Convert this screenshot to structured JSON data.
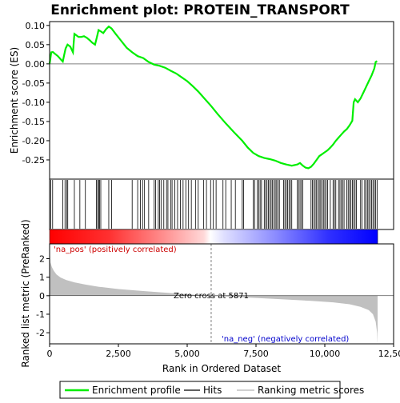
{
  "chart_data": {
    "type": "line",
    "title": "Enrichment plot: PROTEIN_TRANSPORT",
    "colors": {
      "profile": "#00ee00",
      "hits": "#000000",
      "metric_fill": "#c0c0c0",
      "zero_line": "#808080",
      "pos_label": "#cc0000",
      "neg_label": "#0000cc",
      "bar_pos": "#ff0000",
      "bar_neg": "#0000ff"
    },
    "es_panel": {
      "ylabel": "Enrichment score (ES)",
      "ylim": [
        -0.3,
        0.11
      ],
      "yticks": [
        0.1,
        0.05,
        0.0,
        -0.05,
        -0.1,
        -0.15,
        -0.2,
        -0.25
      ],
      "ytick_labels": [
        "0.10",
        "0.05",
        "0.00",
        "-0.05",
        "-0.10",
        "-0.15",
        "-0.20",
        "-0.25"
      ],
      "x": [
        0,
        60,
        120,
        200,
        300,
        400,
        480,
        520,
        580,
        650,
        750,
        850,
        900,
        960,
        1050,
        1150,
        1250,
        1350,
        1450,
        1550,
        1650,
        1720,
        1780,
        1850,
        1950,
        2050,
        2150,
        2250,
        2400,
        2600,
        2800,
        3000,
        3200,
        3400,
        3600,
        3800,
        4000,
        4200,
        4400,
        4600,
        4800,
        5000,
        5200,
        5400,
        5600,
        5871,
        6100,
        6400,
        6700,
        7000,
        7200,
        7400,
        7600,
        7800,
        8000,
        8200,
        8400,
        8600,
        8800,
        9000,
        9100,
        9200,
        9300,
        9400,
        9500,
        9600,
        9700,
        9800,
        9900,
        10000,
        10100,
        10200,
        10300,
        10400,
        10500,
        10600,
        10700,
        10800,
        10900,
        11000,
        11050,
        11100,
        11200,
        11300,
        11400,
        11500,
        11600,
        11700,
        11800,
        11850,
        11900
      ],
      "y": [
        0.0,
        0.03,
        0.031,
        0.026,
        0.02,
        0.012,
        0.006,
        0.02,
        0.04,
        0.05,
        0.045,
        0.03,
        0.078,
        0.075,
        0.07,
        0.07,
        0.072,
        0.068,
        0.062,
        0.055,
        0.05,
        0.07,
        0.088,
        0.085,
        0.08,
        0.09,
        0.097,
        0.092,
        0.078,
        0.06,
        0.042,
        0.03,
        0.02,
        0.015,
        0.005,
        -0.002,
        -0.005,
        -0.01,
        -0.018,
        -0.025,
        -0.035,
        -0.045,
        -0.058,
        -0.072,
        -0.088,
        -0.11,
        -0.13,
        -0.155,
        -0.178,
        -0.2,
        -0.218,
        -0.232,
        -0.24,
        -0.245,
        -0.248,
        -0.252,
        -0.258,
        -0.262,
        -0.265,
        -0.262,
        -0.258,
        -0.265,
        -0.27,
        -0.272,
        -0.268,
        -0.26,
        -0.25,
        -0.24,
        -0.235,
        -0.23,
        -0.225,
        -0.218,
        -0.21,
        -0.2,
        -0.192,
        -0.184,
        -0.176,
        -0.17,
        -0.16,
        -0.148,
        -0.1,
        -0.092,
        -0.1,
        -0.09,
        -0.075,
        -0.06,
        -0.045,
        -0.03,
        -0.012,
        0.005,
        0.007
      ]
    },
    "hits": [
      40,
      110,
      480,
      560,
      620,
      660,
      900,
      1100,
      1300,
      1700,
      1750,
      1780,
      1820,
      1860,
      2150,
      2250,
      3000,
      3200,
      3300,
      3380,
      3450,
      3600,
      3800,
      3850,
      3950,
      4000,
      4050,
      4150,
      4250,
      4300,
      4400,
      4450,
      4550,
      4650,
      4750,
      4850,
      4950,
      5050,
      5150,
      5300,
      5400,
      5600,
      5700,
      5850,
      5950,
      6050,
      6300,
      6400,
      6600,
      6750,
      7000,
      7050,
      7400,
      7450,
      7550,
      7600,
      7650,
      7700,
      7800,
      7850,
      7900,
      7950,
      8000,
      8050,
      8100,
      8150,
      8200,
      8250,
      8300,
      8350,
      8500,
      8550,
      8600,
      8650,
      8700,
      8750,
      8800,
      9000,
      9050,
      9100,
      9150,
      9200,
      9500,
      9550,
      9600,
      9650,
      9700,
      9750,
      9800,
      9850,
      9900,
      9950,
      10000,
      10050,
      10100,
      10200,
      10300,
      10350,
      10400,
      10500,
      10550,
      10600,
      10650,
      10700,
      10800,
      10850,
      10900,
      10950,
      11000,
      11050,
      11100,
      11150,
      11300,
      11350,
      11450,
      11500,
      11550,
      11600,
      11650,
      11700,
      11750,
      11800,
      11850,
      11900
    ],
    "metric_panel": {
      "ylabel": "Ranked list metric (PreRanked)",
      "ylim": [
        -2.6,
        2.8
      ],
      "yticks": [
        2,
        1,
        0,
        -1,
        -2
      ],
      "ytick_labels": [
        "2",
        "1",
        "0",
        "-1",
        "-2"
      ],
      "x": [
        0,
        30,
        80,
        150,
        250,
        400,
        600,
        900,
        1300,
        1800,
        2500,
        3500,
        4500,
        5500,
        5871,
        6500,
        7500,
        8500,
        9500,
        10300,
        10900,
        11300,
        11600,
        11750,
        11850,
        11900,
        11920
      ],
      "y": [
        2.6,
        1.8,
        1.55,
        1.35,
        1.15,
        0.98,
        0.85,
        0.72,
        0.6,
        0.48,
        0.36,
        0.24,
        0.13,
        0.03,
        0.0,
        -0.05,
        -0.12,
        -0.2,
        -0.28,
        -0.36,
        -0.46,
        -0.6,
        -0.78,
        -1.0,
        -1.4,
        -2.0,
        -2.6
      ],
      "zero_cross_label": "Zero cross at 5871",
      "zero_cross": 5871,
      "pos_label": "'na_pos' (positively correlated)",
      "neg_label": "'na_neg' (negatively correlated)"
    },
    "xaxis": {
      "xlabel": "Rank in Ordered Dataset",
      "xlim": [
        0,
        12500
      ],
      "xticks": [
        0,
        2500,
        5000,
        7500,
        10000,
        12500
      ],
      "xtick_labels": [
        "0",
        "2,500",
        "5,000",
        "7,500",
        "10,000",
        "12,500"
      ],
      "n": 11920
    },
    "legend": {
      "placement": "bottom",
      "items": [
        {
          "name": "Enrichment profile",
          "kind": "profile"
        },
        {
          "name": "Hits",
          "kind": "hits"
        },
        {
          "name": "Ranking metric scores",
          "kind": "metric"
        }
      ]
    }
  }
}
